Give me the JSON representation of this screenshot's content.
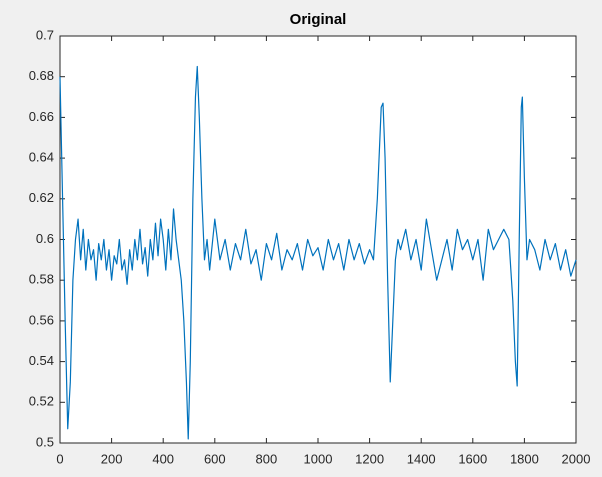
{
  "chart_data": {
    "type": "line",
    "title": "Original",
    "x": [
      0,
      5,
      10,
      20,
      30,
      40,
      50,
      60,
      70,
      80,
      90,
      100,
      110,
      120,
      130,
      140,
      150,
      160,
      170,
      180,
      190,
      200,
      210,
      220,
      230,
      240,
      250,
      260,
      270,
      280,
      290,
      300,
      310,
      320,
      330,
      340,
      350,
      360,
      370,
      380,
      390,
      400,
      410,
      420,
      430,
      440,
      450,
      460,
      470,
      480,
      490,
      497,
      505,
      515,
      525,
      532,
      540,
      550,
      560,
      570,
      580,
      600,
      620,
      640,
      660,
      680,
      700,
      720,
      740,
      760,
      780,
      800,
      820,
      840,
      860,
      880,
      900,
      920,
      940,
      960,
      980,
      1000,
      1020,
      1040,
      1060,
      1080,
      1100,
      1120,
      1140,
      1160,
      1180,
      1200,
      1215,
      1230,
      1245,
      1252,
      1260,
      1270,
      1280,
      1290,
      1300,
      1310,
      1320,
      1340,
      1360,
      1380,
      1400,
      1420,
      1440,
      1460,
      1480,
      1500,
      1520,
      1540,
      1560,
      1580,
      1600,
      1620,
      1640,
      1660,
      1680,
      1700,
      1720,
      1740,
      1755,
      1765,
      1772,
      1780,
      1788,
      1792,
      1800,
      1810,
      1820,
      1840,
      1860,
      1880,
      1900,
      1920,
      1940,
      1960,
      1980,
      2000
    ],
    "series": [
      {
        "color": "#0072bd",
        "values": [
          0.68,
          0.65,
          0.62,
          0.56,
          0.507,
          0.53,
          0.58,
          0.6,
          0.61,
          0.59,
          0.605,
          0.585,
          0.6,
          0.59,
          0.595,
          0.58,
          0.598,
          0.59,
          0.6,
          0.585,
          0.595,
          0.58,
          0.592,
          0.588,
          0.6,
          0.585,
          0.59,
          0.578,
          0.595,
          0.585,
          0.6,
          0.59,
          0.605,
          0.588,
          0.596,
          0.582,
          0.6,
          0.59,
          0.608,
          0.592,
          0.61,
          0.6,
          0.585,
          0.605,
          0.59,
          0.615,
          0.6,
          0.59,
          0.58,
          0.56,
          0.53,
          0.502,
          0.54,
          0.62,
          0.67,
          0.685,
          0.66,
          0.62,
          0.59,
          0.6,
          0.585,
          0.61,
          0.59,
          0.6,
          0.585,
          0.598,
          0.59,
          0.605,
          0.588,
          0.595,
          0.58,
          0.598,
          0.59,
          0.603,
          0.585,
          0.595,
          0.59,
          0.598,
          0.585,
          0.6,
          0.592,
          0.596,
          0.585,
          0.6,
          0.59,
          0.598,
          0.585,
          0.6,
          0.59,
          0.598,
          0.588,
          0.595,
          0.59,
          0.62,
          0.665,
          0.667,
          0.64,
          0.58,
          0.53,
          0.56,
          0.59,
          0.6,
          0.595,
          0.605,
          0.59,
          0.6,
          0.585,
          0.61,
          0.595,
          0.58,
          0.59,
          0.6,
          0.585,
          0.605,
          0.595,
          0.6,
          0.59,
          0.6,
          0.58,
          0.605,
          0.595,
          0.6,
          0.605,
          0.6,
          0.57,
          0.54,
          0.528,
          0.6,
          0.665,
          0.67,
          0.63,
          0.59,
          0.6,
          0.595,
          0.585,
          0.6,
          0.59,
          0.598,
          0.585,
          0.595,
          0.582,
          0.59
        ]
      }
    ],
    "xlim": [
      0,
      2000
    ],
    "xticks": [
      0,
      200,
      400,
      600,
      800,
      1000,
      1200,
      1400,
      1600,
      1800,
      2000
    ],
    "ylim": [
      0.5,
      0.7
    ],
    "yticks": [
      0.5,
      0.52,
      0.54,
      0.56,
      0.58,
      0.6,
      0.62,
      0.64,
      0.66,
      0.68,
      0.7
    ],
    "grid": false
  }
}
